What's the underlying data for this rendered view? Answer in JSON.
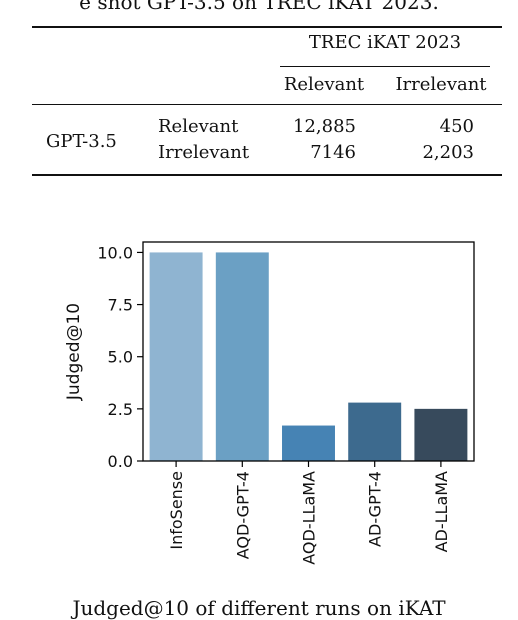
{
  "caption_top": "e shot GPT-3.5 on TREC iKAT 2023.",
  "table": {
    "group_header": "TREC iKAT 2023",
    "col_headers": [
      "Relevant",
      "Irrelevant"
    ],
    "row_group": "GPT-3.5",
    "rows": [
      {
        "label": "Relevant",
        "values": [
          "12,885",
          "450"
        ]
      },
      {
        "label": "Irrelevant",
        "values": [
          "7146",
          "2,203"
        ]
      }
    ]
  },
  "chart_data": {
    "type": "bar",
    "categories": [
      "InfoSense",
      "AQD-GPT-4",
      "AQD-LLaMA",
      "AD-GPT-4",
      "AD-LLaMA"
    ],
    "values": [
      10.0,
      10.0,
      1.7,
      2.8,
      2.5
    ],
    "colors": [
      "#8fb4d1",
      "#6ba0c4",
      "#4683b4",
      "#3d6a8e",
      "#374a5c"
    ],
    "title": "",
    "xlabel": "",
    "ylabel": "Judged@10",
    "ylim": [
      0,
      10.5
    ],
    "yticks": [
      "0.0",
      "2.5",
      "5.0",
      "7.5",
      "10.0"
    ],
    "ytick_values": [
      0,
      2.5,
      5.0,
      7.5,
      10.0
    ],
    "grid": false
  },
  "caption_bottom": "Judged@10 of different runs on iKAT"
}
